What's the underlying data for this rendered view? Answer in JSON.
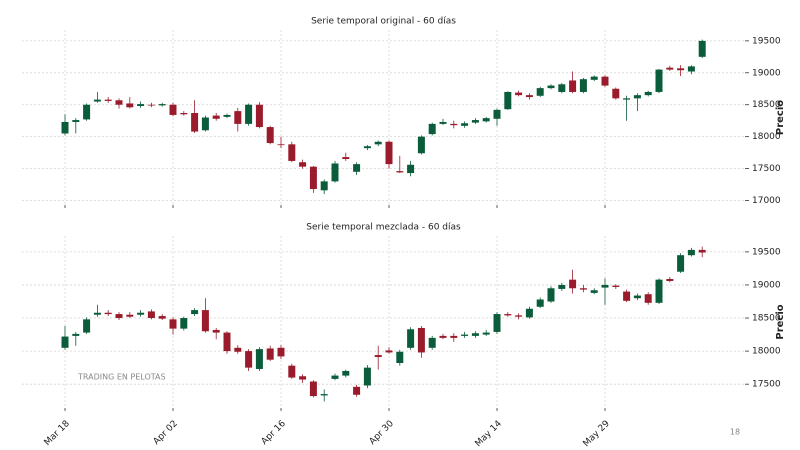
{
  "page_number": "18",
  "chart_data": [
    {
      "type": "candlestick",
      "title": "Serie temporal original -  60 días",
      "ylabel": "Precio",
      "up_color": "#0a5c3a",
      "down_color": "#9a1b2b",
      "grid": true,
      "ylim": [
        16930,
        19670
      ],
      "yticks": [
        17000,
        17500,
        18000,
        18500,
        19000,
        19500
      ],
      "open": [
        18050,
        18230,
        18270,
        18550,
        18580,
        18570,
        18520,
        18480,
        18500,
        18490,
        18500,
        18370,
        18370,
        18100,
        18330,
        18310,
        18400,
        18200,
        18500,
        18150,
        17880,
        17880,
        17600,
        17530,
        17160,
        17300,
        17680,
        17450,
        17820,
        17880,
        17920,
        17460,
        17430,
        17740,
        18040,
        18200,
        18200,
        18170,
        18220,
        18240,
        18280,
        18430,
        18690,
        18650,
        18640,
        18760,
        18700,
        18880,
        18700,
        18890,
        18940,
        18750,
        18580,
        18600,
        18650,
        18700,
        19080,
        19070,
        19020,
        19250
      ],
      "high": [
        18350,
        18290,
        18520,
        18700,
        18620,
        18600,
        18620,
        18550,
        18530,
        18530,
        18530,
        18400,
        18570,
        18330,
        18370,
        18360,
        18450,
        18520,
        18540,
        18170,
        18000,
        17920,
        17640,
        17540,
        17330,
        17620,
        17750,
        17600,
        17870,
        17940,
        17940,
        17700,
        17620,
        18020,
        18220,
        18280,
        18250,
        18240,
        18290,
        18310,
        18440,
        18710,
        18720,
        18680,
        18780,
        18820,
        18840,
        19020,
        18920,
        18960,
        18960,
        18770,
        18640,
        18680,
        18720,
        19060,
        19110,
        19120,
        19120,
        19520
      ],
      "low": [
        18020,
        18050,
        18250,
        18530,
        18530,
        18440,
        18440,
        18450,
        18460,
        18470,
        18320,
        18330,
        18060,
        18080,
        18250,
        18290,
        18080,
        18170,
        18130,
        17880,
        17820,
        17600,
        17500,
        17120,
        17100,
        17280,
        17620,
        17400,
        17790,
        17850,
        17500,
        17430,
        17380,
        17720,
        18020,
        18180,
        18130,
        18140,
        18200,
        18220,
        18170,
        18420,
        18630,
        18580,
        18620,
        18740,
        18680,
        18680,
        18680,
        18870,
        18780,
        18580,
        18250,
        18400,
        18630,
        18680,
        19030,
        18950,
        18980,
        19230
      ],
      "close": [
        18230,
        18260,
        18500,
        18580,
        18560,
        18500,
        18460,
        18510,
        18490,
        18510,
        18340,
        18350,
        18080,
        18300,
        18280,
        18340,
        18200,
        18500,
        18150,
        17900,
        17870,
        17620,
        17530,
        17180,
        17300,
        17580,
        17650,
        17570,
        17850,
        17920,
        17570,
        17440,
        17560,
        18000,
        18200,
        18230,
        18180,
        18210,
        18260,
        18290,
        18420,
        18700,
        18650,
        18620,
        18760,
        18800,
        18820,
        18700,
        18900,
        18940,
        18800,
        18600,
        18600,
        18650,
        18700,
        19050,
        19050,
        19040,
        19100,
        19500
      ]
    },
    {
      "type": "candlestick",
      "title": "Serie temporal mezclada -  60 días",
      "ylabel": "Precio",
      "up_color": "#0a5c3a",
      "down_color": "#9a1b2b",
      "grid": true,
      "watermark": "TRADING EN PELOTAS",
      "ylim": [
        17140,
        19740
      ],
      "yticks": [
        17500,
        18000,
        18500,
        19000,
        19500
      ],
      "categories": [
        "Mar 18",
        null,
        null,
        null,
        null,
        null,
        null,
        null,
        null,
        null,
        "Apr 02",
        null,
        null,
        null,
        null,
        null,
        null,
        null,
        null,
        null,
        "Apr 16",
        null,
        null,
        null,
        null,
        null,
        null,
        null,
        null,
        null,
        "Apr 30",
        null,
        null,
        null,
        null,
        null,
        null,
        null,
        null,
        null,
        "May 14",
        null,
        null,
        null,
        null,
        null,
        null,
        null,
        null,
        null,
        "May 29",
        null,
        null,
        null,
        null,
        null,
        null,
        null,
        null,
        null
      ],
      "open": [
        18050,
        18230,
        18280,
        18550,
        18580,
        18560,
        18550,
        18550,
        18600,
        18530,
        18480,
        18340,
        18560,
        18620,
        18320,
        18280,
        18050,
        18000,
        17730,
        18040,
        18050,
        17780,
        17620,
        17540,
        17330,
        17580,
        17630,
        17460,
        17480,
        17940,
        18010,
        17820,
        18050,
        18350,
        18050,
        18230,
        18230,
        18230,
        18230,
        18250,
        18290,
        18560,
        18540,
        18510,
        18670,
        18750,
        18940,
        19080,
        18950,
        18880,
        18960,
        18990,
        18900,
        18800,
        18860,
        18730,
        19090,
        19200,
        19450,
        19530
      ],
      "high": [
        18380,
        18290,
        18510,
        18700,
        18620,
        18590,
        18590,
        18620,
        18630,
        18560,
        18510,
        18520,
        18650,
        18800,
        18350,
        18300,
        18090,
        18030,
        18060,
        18080,
        18090,
        17810,
        17650,
        17560,
        17420,
        17660,
        17720,
        17490,
        17790,
        18080,
        18060,
        18020,
        18360,
        18380,
        18230,
        18260,
        18270,
        18290,
        18300,
        18320,
        18590,
        18590,
        18570,
        18670,
        18810,
        18980,
        19030,
        19230,
        19000,
        18950,
        19100,
        19010,
        18930,
        18870,
        18890,
        19100,
        19120,
        19480,
        19560,
        19580
      ],
      "low": [
        18020,
        18080,
        18260,
        18520,
        18530,
        18470,
        18500,
        18520,
        18480,
        18470,
        18250,
        18310,
        18530,
        18280,
        18180,
        17960,
        17960,
        17700,
        17700,
        17850,
        17880,
        17580,
        17520,
        17300,
        17240,
        17560,
        17600,
        17310,
        17440,
        17720,
        17960,
        17780,
        18020,
        17900,
        18020,
        18180,
        18140,
        18200,
        18200,
        18230,
        18260,
        18520,
        18480,
        18490,
        18650,
        18730,
        18910,
        18870,
        18890,
        18860,
        18700,
        18940,
        18740,
        18770,
        18700,
        18710,
        19040,
        19180,
        19430,
        19420
      ],
      "close": [
        18220,
        18260,
        18480,
        18580,
        18560,
        18500,
        18520,
        18580,
        18500,
        18490,
        18340,
        18500,
        18620,
        18300,
        18280,
        18000,
        17990,
        17750,
        18030,
        17870,
        17920,
        17600,
        17570,
        17320,
        17350,
        17630,
        17700,
        17340,
        17750,
        17910,
        17980,
        17990,
        18330,
        17980,
        18200,
        18200,
        18200,
        18250,
        18270,
        18280,
        18560,
        18540,
        18520,
        18640,
        18780,
        18950,
        19000,
        18950,
        18930,
        18920,
        19000,
        18970,
        18760,
        18840,
        18730,
        19080,
        19060,
        19450,
        19530,
        19490
      ]
    }
  ]
}
